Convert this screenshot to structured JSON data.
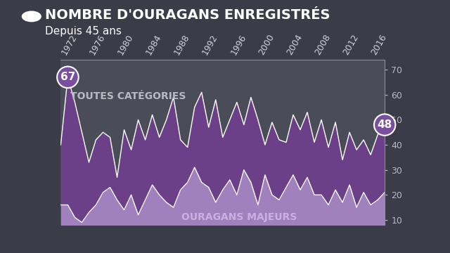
{
  "chart_data": {
    "type": "area",
    "title": "NOMBRE D'OURAGANS ENREGISTRÉS",
    "subtitle": "Depuis 45 ans",
    "x": [
      1971,
      1972,
      1973,
      1974,
      1975,
      1976,
      1977,
      1978,
      1979,
      1980,
      1981,
      1982,
      1983,
      1984,
      1985,
      1986,
      1987,
      1988,
      1989,
      1990,
      1991,
      1992,
      1993,
      1994,
      1995,
      1996,
      1997,
      1998,
      1999,
      2000,
      2001,
      2002,
      2003,
      2004,
      2005,
      2006,
      2007,
      2008,
      2009,
      2010,
      2011,
      2012,
      2013,
      2014,
      2015,
      2016,
      2017
    ],
    "series": [
      {
        "name": "TOUTES CATÉGORIES",
        "color": "#6e3f8c",
        "values": [
          40,
          67,
          57,
          45,
          33,
          42,
          45,
          43,
          27,
          46,
          38,
          50,
          42,
          52,
          43,
          50,
          59,
          42,
          39,
          55,
          61,
          47,
          58,
          43,
          50,
          57,
          48,
          59,
          50,
          40,
          49,
          42,
          41,
          52,
          46,
          53,
          41,
          50,
          39,
          49,
          34,
          45,
          38,
          42,
          36,
          44,
          48
        ]
      },
      {
        "name": "OURAGANS MAJEURS",
        "color": "#a585c0",
        "values": [
          16,
          16,
          11,
          9,
          13,
          16,
          21,
          23,
          18,
          14,
          20,
          12,
          18,
          24,
          20,
          17,
          15,
          22,
          25,
          31,
          25,
          23,
          17,
          22,
          26,
          20,
          30,
          25,
          16,
          28,
          20,
          18,
          23,
          28,
          22,
          27,
          20,
          20,
          16,
          22,
          17,
          24,
          15,
          21,
          16,
          18,
          21
        ]
      }
    ],
    "annotations": [
      {
        "x": 1972,
        "text": "67"
      },
      {
        "x": 2017,
        "text": "48"
      }
    ],
    "xlim": [
      1971,
      2017
    ],
    "xticks": [
      1972,
      1976,
      1980,
      1984,
      1988,
      1992,
      1996,
      2000,
      2004,
      2008,
      2012,
      2016
    ],
    "ylim": [
      8,
      74
    ],
    "yticks": [
      10,
      20,
      30,
      40,
      50,
      60,
      70
    ],
    "grid": false
  }
}
